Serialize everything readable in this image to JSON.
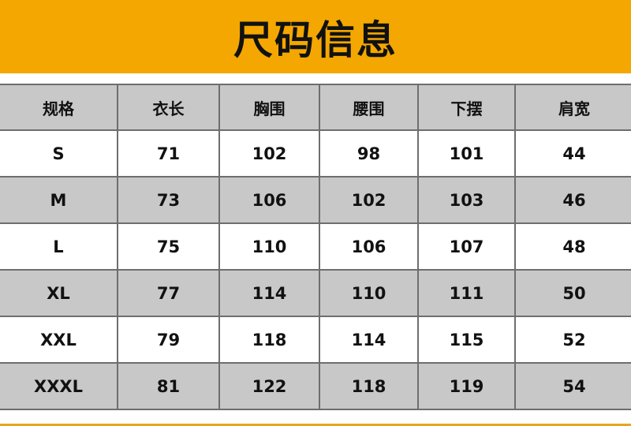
{
  "title": "尺码信息",
  "colors": {
    "banner": "#F4A700",
    "header_row": "#C8C8C8",
    "alt_row": "#C8C8C8"
  },
  "table": {
    "headers": [
      "规格",
      "衣长",
      "胸围",
      "腰围",
      "下摆",
      "肩宽"
    ],
    "rows": [
      [
        "S",
        "71",
        "102",
        "98",
        "101",
        "44"
      ],
      [
        "M",
        "73",
        "106",
        "102",
        "103",
        "46"
      ],
      [
        "L",
        "75",
        "110",
        "106",
        "107",
        "48"
      ],
      [
        "XL",
        "77",
        "114",
        "110",
        "111",
        "50"
      ],
      [
        "XXL",
        "79",
        "118",
        "114",
        "115",
        "52"
      ],
      [
        "XXXL",
        "81",
        "122",
        "118",
        "119",
        "54"
      ]
    ]
  }
}
